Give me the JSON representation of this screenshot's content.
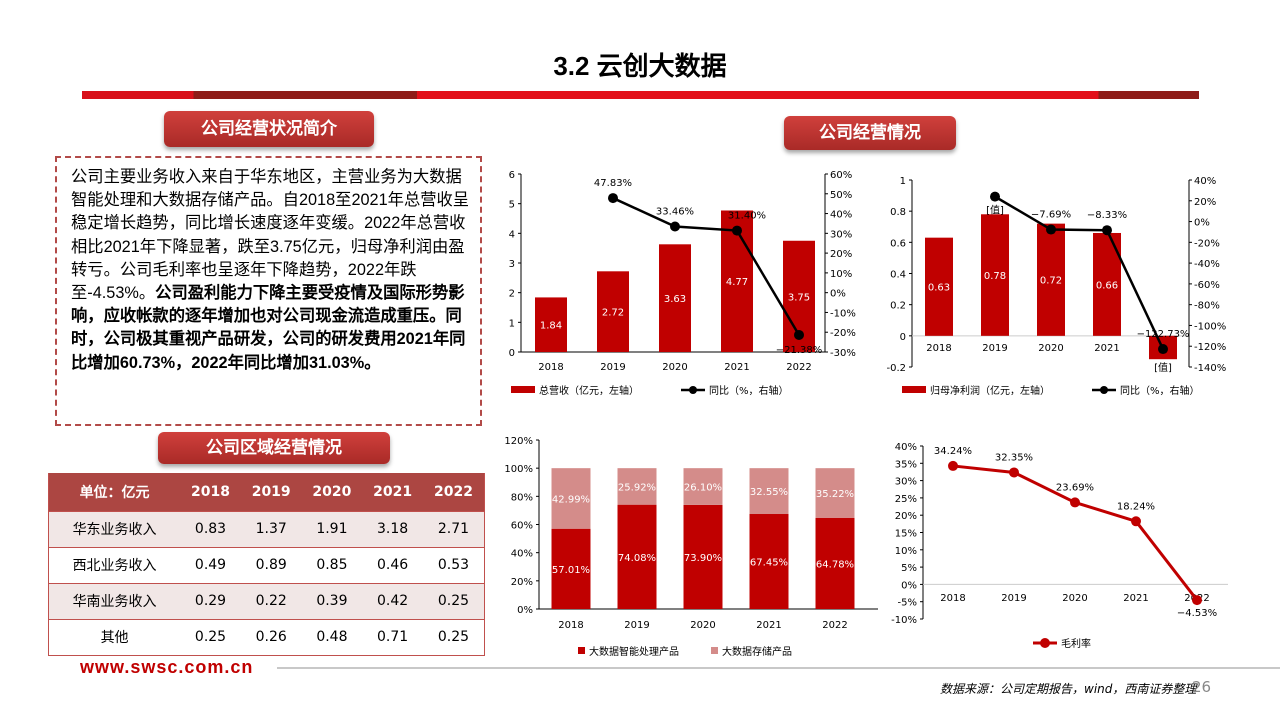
{
  "header": {
    "title": "3.2 云创大数据"
  },
  "sections": {
    "overview": "公司经营状况简介",
    "operations": "公司经营情况",
    "regional": "公司区域经营情况"
  },
  "overview_text": {
    "normal": "公司主要业务收入来自于华东地区，主营业务为大数据智能处理和大数据存储产品。自2018至2021年总营收呈稳定增长趋势，同比增长速度逐年变缓。2022年总营收相比2021年下降显著，跌至3.75亿元，归母净利润由盈转亏。公司毛利率也呈逐年下降趋势，2022年跌至-4.53%。",
    "bold": "公司盈利能力下降主要受疫情及国际形势影响，应收帐款的逐年增加也对公司现金流造成重压。同时，公司极其重视产品研发，公司的研发费用2021年同比增加60.73%，2022年同比增加31.03%。"
  },
  "region_table": {
    "headers": [
      "单位：亿元",
      "2018",
      "2019",
      "2020",
      "2021",
      "2022"
    ],
    "rows": [
      [
        "华东业务收入",
        "0.83",
        "1.37",
        "1.91",
        "3.18",
        "2.71"
      ],
      [
        "西北业务收入",
        "0.49",
        "0.89",
        "0.85",
        "0.46",
        "0.53"
      ],
      [
        "华南业务收入",
        "0.29",
        "0.22",
        "0.39",
        "0.42",
        "0.25"
      ],
      [
        "其他",
        "0.25",
        "0.26",
        "0.48",
        "0.71",
        "0.25"
      ]
    ]
  },
  "footer": {
    "url": "www.swsc.com.cn",
    "source": "数据来源：公司定期报告，wind，西南证券整理",
    "page": "26"
  },
  "colors": {
    "red": "#c00000",
    "pink": "#d48c8a",
    "black": "#000000"
  },
  "chart_data": [
    {
      "type": "bar+line",
      "categories": [
        "2018",
        "2019",
        "2020",
        "2021",
        "2022"
      ],
      "series": [
        {
          "name": "总营收（亿元，左轴）",
          "type": "bar",
          "values": [
            1.84,
            2.72,
            3.63,
            4.77,
            3.75
          ],
          "labels": [
            "1.84",
            "2.72",
            "3.63",
            "4.77",
            "3.75"
          ]
        },
        {
          "name": "同比（%，右轴）",
          "type": "line",
          "values": [
            null,
            47.83,
            33.46,
            31.4,
            -21.38
          ],
          "labels": [
            "",
            "47.83%",
            "33.46%",
            "31.40%",
            "−21.38%"
          ]
        }
      ],
      "ylim": [
        0,
        6
      ],
      "yticks": [
        "0",
        "1",
        "2",
        "3",
        "4",
        "5",
        "6"
      ],
      "y2lim": [
        -30,
        60
      ],
      "y2ticks": [
        "-30%",
        "-20%",
        "-10%",
        "0%",
        "10%",
        "20%",
        "30%",
        "40%",
        "50%",
        "60%"
      ],
      "legend": "bottom"
    },
    {
      "type": "bar+line",
      "categories": [
        "2018",
        "2019",
        "2020",
        "2021",
        "2022"
      ],
      "series": [
        {
          "name": "归母净利润（亿元，左轴）",
          "type": "bar",
          "values": [
            0.63,
            0.78,
            0.72,
            0.66,
            -0.15
          ],
          "labels": [
            "0.63",
            "0.78",
            "0.72",
            "0.66",
            "[值]"
          ]
        },
        {
          "name": "同比（%，右轴）",
          "type": "line",
          "values": [
            null,
            24,
            -7.69,
            -8.33,
            -122.73
          ],
          "labels": [
            "",
            "[值]",
            "−7.69%",
            "−8.33%",
            "−122.73%"
          ]
        }
      ],
      "ylim": [
        -0.2,
        1
      ],
      "yticks": [
        "-0.2",
        "0",
        "0.2",
        "0.4",
        "0.6",
        "0.8",
        "1"
      ],
      "y2lim": [
        -140,
        40
      ],
      "y2ticks": [
        "-140%",
        "-120%",
        "-100%",
        "-80%",
        "-60%",
        "-40%",
        "-20%",
        "0%",
        "20%",
        "40%"
      ],
      "legend": "bottom"
    },
    {
      "type": "stacked-bar",
      "categories": [
        "2018",
        "2019",
        "2020",
        "2021",
        "2022"
      ],
      "series": [
        {
          "name": "大数据智能处理产品",
          "values": [
            57.01,
            74.08,
            73.9,
            67.45,
            64.78
          ]
        },
        {
          "name": "大数据存储产品",
          "values": [
            42.99,
            25.92,
            26.1,
            32.55,
            35.22
          ]
        }
      ],
      "ylim": [
        0,
        120
      ],
      "yticks": [
        "0%",
        "20%",
        "40%",
        "60%",
        "80%",
        "100%",
        "120%"
      ],
      "legend": "bottom"
    },
    {
      "type": "line",
      "categories": [
        "2018",
        "2019",
        "2020",
        "2021",
        "2022"
      ],
      "series": [
        {
          "name": "毛利率",
          "values": [
            34.24,
            32.35,
            23.69,
            18.24,
            -4.53
          ],
          "labels": [
            "34.24%",
            "32.35%",
            "23.69%",
            "18.24%",
            "−4.53%"
          ]
        }
      ],
      "ylim": [
        -10,
        40
      ],
      "yticks": [
        "-10%",
        "-5%",
        "0%",
        "5%",
        "10%",
        "15%",
        "20%",
        "25%",
        "30%",
        "35%",
        "40%"
      ],
      "legend": "bottom"
    }
  ]
}
